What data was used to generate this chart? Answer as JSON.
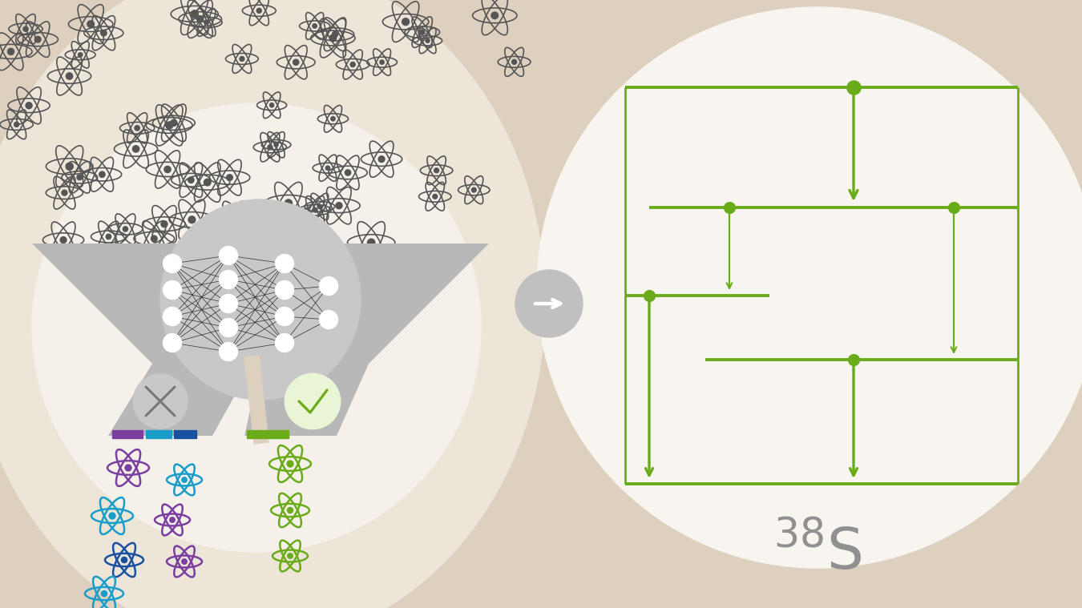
{
  "bg_color": "#ddd0bf",
  "left_bg_ellipse_color": "#ede5d8",
  "right_bg_circle_color": "#f8f5f0",
  "funnel_color": "#b8b8b8",
  "nn_circle_color": "#c8c8c8",
  "green": "#6aab1a",
  "dark_gray_atom": "#555555",
  "purple": "#7b3fa0",
  "teal": "#1a9dc9",
  "blue": "#1a50a0",
  "x_circle_color": "#c8c8c8",
  "x_mark_color": "#777777",
  "check_circle_fill": "#eaf5d5",
  "check_circle_edge": "#6aab1a",
  "arrow_circle_color": "#c0c0c0",
  "label_color": "#909090",
  "figw": 13.5,
  "figh": 7.59,
  "dpi": 100
}
